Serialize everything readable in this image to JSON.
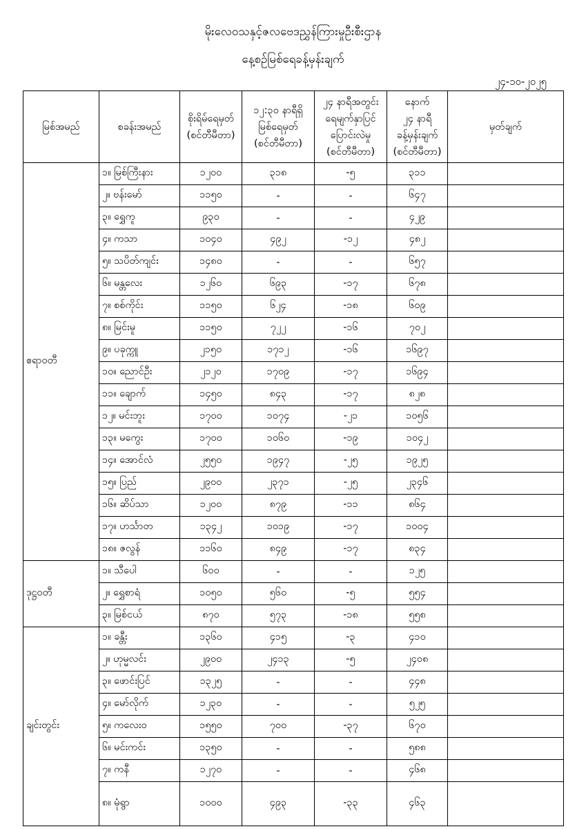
{
  "page": {
    "title_line1": "မိုးလေဝသနှင့်ဇလဗေဒညွှန်ကြားမှုဦးစီးဌာန",
    "title_line2": "နေ့စဉ်မြစ်ရေခန့်မှန်းချက်",
    "date": "၂၄-၁၀-၂၀၂၅"
  },
  "table": {
    "headers": {
      "river": "မြစ်အမည်",
      "station": "စခန်းအမည်",
      "danger": "စိုးရိမ်ရေမှတ်\n(စင်တီမီတာ)",
      "current": "၁၂:၃၀ နာရီရှိ\nမြစ်ရေမှတ်\n(စင်တီမီတာ)",
      "change": "၂၄ နာရီအတွင်း\nရေမျက်နှာပြင်\nပြောင်းလဲမှု\n(စင်တီမီတာ)",
      "forecast": "နောက်\n၂၄ နာရီ\nခန့်မှန်းချက်\n(စင်တီမီတာ)",
      "remark": "မှတ်ချက်"
    },
    "groups": [
      {
        "river": "ဧရာဝတီ",
        "rows": [
          {
            "station": "၁။ မြစ်ကြီးနား",
            "danger": "၁၂၀၀",
            "current": "၃၁၈",
            "change": "-၅",
            "forecast": "၃၁၁",
            "remark": ""
          },
          {
            "station": "၂။ ဗန်းမော်",
            "danger": "၁၁၅၀",
            "current": "-",
            "change": "-",
            "forecast": "၆၄၇",
            "remark": ""
          },
          {
            "station": "၃။ ရွှေကူ",
            "danger": "၉၃၀",
            "current": "-",
            "change": "-",
            "forecast": "၄၂၉",
            "remark": ""
          },
          {
            "station": "၄။ ကသာ",
            "danger": "၁၀၄၀",
            "current": "၄၉၂",
            "change": "-၁၂",
            "forecast": "၄၈၂",
            "remark": ""
          },
          {
            "station": "၅။ သပိတ်ကျင်း",
            "danger": "၁၄၈၀",
            "current": "-",
            "change": "-",
            "forecast": "၆၅၇",
            "remark": ""
          },
          {
            "station": "၆။ မန္တလေး",
            "danger": "၁၂၆၀",
            "current": "၆၉၃",
            "change": "-၁၇",
            "forecast": "၆၇၈",
            "remark": ""
          },
          {
            "station": "၇။ စစ်ကိုင်း",
            "danger": "၁၁၅၀",
            "current": "၆၂၄",
            "change": "-၁၈",
            "forecast": "၆၀၉",
            "remark": ""
          },
          {
            "station": "၈။ မြင်းမူ",
            "danger": "၁၁၅၀",
            "current": "၇၂၂",
            "change": "-၁၆",
            "forecast": "၇၀၂",
            "remark": ""
          },
          {
            "station": "၉။ ပခုက္ကူ",
            "danger": "၂၁၅၀",
            "current": "၁၇၁၂",
            "change": "-၁၆",
            "forecast": "၁၆၉၇",
            "remark": ""
          },
          {
            "station": "၁၀။ ညောင်ဦး",
            "danger": "၂၁၂၀",
            "current": "၁၇၀၉",
            "change": "-၁၇",
            "forecast": "၁၆၉၄",
            "remark": ""
          },
          {
            "station": "၁၁။ ချောက်",
            "danger": "၁၄၅၀",
            "current": "၈၄၃",
            "change": "-၁၇",
            "forecast": "၈၂၈",
            "remark": ""
          },
          {
            "station": "၁၂။ မင်းဘူး",
            "danger": "၁၇၀၀",
            "current": "၁၀၇၄",
            "change": "-၂၁",
            "forecast": "၁၀၅၆",
            "remark": ""
          },
          {
            "station": "၁၃။ မကွေး",
            "danger": "၁၇၀၀",
            "current": "၁၀၆၀",
            "change": "-၁၉",
            "forecast": "၁၀၄၂",
            "remark": ""
          },
          {
            "station": "၁၄။ အောင်လံ",
            "danger": "၂၅၅၀",
            "current": "၁၉၄၇",
            "change": "-၂၅",
            "forecast": "၁၉၂၅",
            "remark": ""
          },
          {
            "station": "၁၅။ ပြည်",
            "danger": "၂၉၀၀",
            "current": "၂၃၇၁",
            "change": "-၂၅",
            "forecast": "၂၃၄၆",
            "remark": ""
          },
          {
            "station": "၁၆။ ဆိပ်သာ",
            "danger": "၁၂၀၀",
            "current": "၈၇၉",
            "change": "-၁၁",
            "forecast": "၈၆၄",
            "remark": ""
          },
          {
            "station": "၁၇။ ဟင်္သာတ",
            "danger": "၁၃၄၂",
            "current": "၁၀၁၉",
            "change": "-၁၇",
            "forecast": "၁၀၀၄",
            "remark": ""
          },
          {
            "station": "၁၈။ ဇလွန်",
            "danger": "၁၁၆၀",
            "current": "၈၄၉",
            "change": "-၁၇",
            "forecast": "၈၃၄",
            "remark": ""
          }
        ]
      },
      {
        "river": "ဒုဋ္ဌဝတီ",
        "rows": [
          {
            "station": "၁။ သီပေါ",
            "danger": "၆၀၀",
            "current": "-",
            "change": "-",
            "forecast": "၁၂၅",
            "remark": ""
          },
          {
            "station": "၂။ ရွှေစာရံ",
            "danger": "၁၀၅၀",
            "current": "၅၆၀",
            "change": "-၅",
            "forecast": "၅၅၄",
            "remark": ""
          },
          {
            "station": "၃။ မြစ်ငယ်",
            "danger": "၈၇၀",
            "current": "၅၇၃",
            "change": "-၁၈",
            "forecast": "၅၅၈",
            "remark": ""
          }
        ]
      },
      {
        "river": "ချင်းတွင်း",
        "rows": [
          {
            "station": "၁။ ခန္တီး",
            "danger": "၁၃၆၀",
            "current": "၄၁၅",
            "change": "-၃",
            "forecast": "၄၁၀",
            "remark": ""
          },
          {
            "station": "၂။ ဟုမ္မလင်း",
            "danger": "၂၉၀၀",
            "current": "၂၄၁၃",
            "change": "-၅",
            "forecast": "၂၄၀၈",
            "remark": ""
          },
          {
            "station": "၃။ ဖောင်းပြင်",
            "danger": "၁၃၂၅",
            "current": "-",
            "change": "-",
            "forecast": "၄၄၈",
            "remark": ""
          },
          {
            "station": "၄။ မော်လိုက်",
            "danger": "၁၂၃၀",
            "current": "-",
            "change": "-",
            "forecast": "၅၂၅",
            "remark": ""
          },
          {
            "station": "၅။ ကလေးဝ",
            "danger": "၁၅၅၀",
            "current": "၇၀၀",
            "change": "-၃၇",
            "forecast": "၆၇၀",
            "remark": ""
          },
          {
            "station": "၆။ မင်းကင်း",
            "danger": "၁၃၅၀",
            "current": "-",
            "change": "-",
            "forecast": "၅၈၈",
            "remark": ""
          },
          {
            "station": "၇။ ကနီ",
            "danger": "၁၂၇၀",
            "current": "-",
            "change": "-",
            "forecast": "၄၆၈",
            "remark": ""
          },
          {
            "station": "၈။ မုံရွာ",
            "danger": "၁၀၀၀",
            "current": "၄၉၃",
            "change": "-၃၃",
            "forecast": "၄၆၃",
            "remark": ""
          }
        ]
      }
    ]
  }
}
